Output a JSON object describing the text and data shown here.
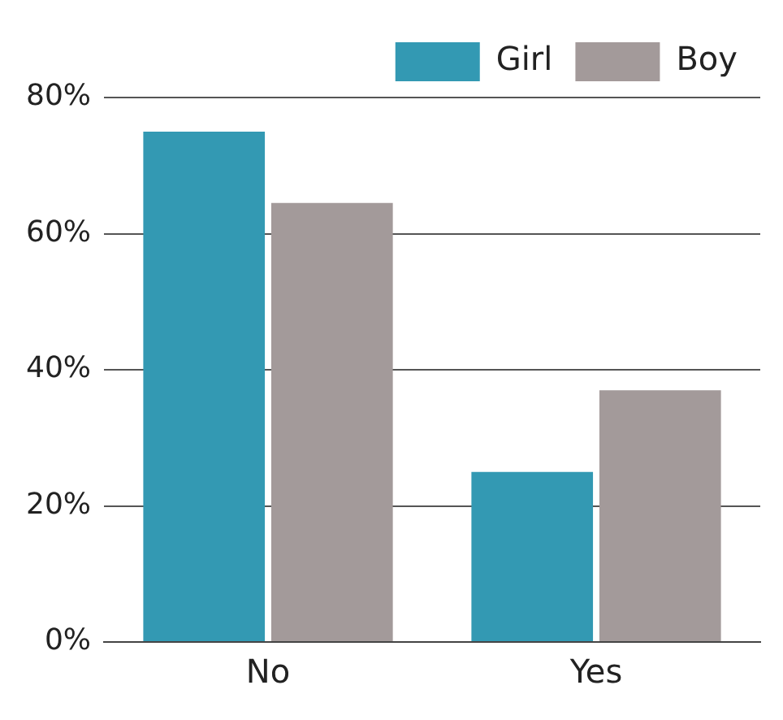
{
  "chart_data": {
    "type": "bar",
    "categories": [
      "No",
      "Yes"
    ],
    "series": [
      {
        "name": "Girl",
        "color": "#3399b3",
        "values": [
          75,
          25
        ]
      },
      {
        "name": "Boy",
        "color": "#a39a9a",
        "values": [
          64.5,
          37
        ]
      }
    ],
    "ylim": [
      0,
      80
    ],
    "yticks": [
      {
        "value": 0,
        "label": "0%"
      },
      {
        "value": 20,
        "label": "20%"
      },
      {
        "value": 40,
        "label": "40%"
      },
      {
        "value": 60,
        "label": "60%"
      },
      {
        "value": 80,
        "label": "80%"
      }
    ],
    "grid": "y",
    "legend": "top right"
  }
}
